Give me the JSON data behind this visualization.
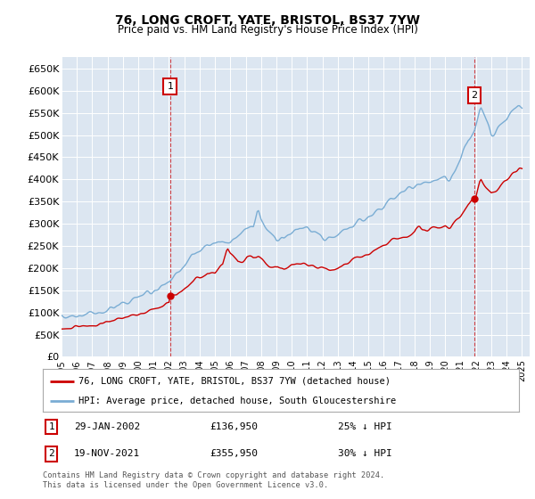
{
  "title": "76, LONG CROFT, YATE, BRISTOL, BS37 7YW",
  "subtitle": "Price paid vs. HM Land Registry's House Price Index (HPI)",
  "background_color": "#dce6f1",
  "fig_bg_color": "#ffffff",
  "ylim": [
    0,
    675000
  ],
  "yticks": [
    0,
    50000,
    100000,
    150000,
    200000,
    250000,
    300000,
    350000,
    400000,
    450000,
    500000,
    550000,
    600000,
    650000
  ],
  "hpi_color": "#7aadd4",
  "price_color": "#cc0000",
  "legend_label_price": "76, LONG CROFT, YATE, BRISTOL, BS37 7YW (detached house)",
  "legend_label_hpi": "HPI: Average price, detached house, South Gloucestershire",
  "sale1_date": 2002.08,
  "sale1_price": 136950,
  "sale1_label": "1",
  "sale2_date": 2021.9,
  "sale2_price": 355950,
  "sale2_label": "2",
  "footer_line1": "Contains HM Land Registry data © Crown copyright and database right 2024.",
  "footer_line2": "This data is licensed under the Open Government Licence v3.0.",
  "xlim_start": 1995.0,
  "xlim_end": 2025.5
}
